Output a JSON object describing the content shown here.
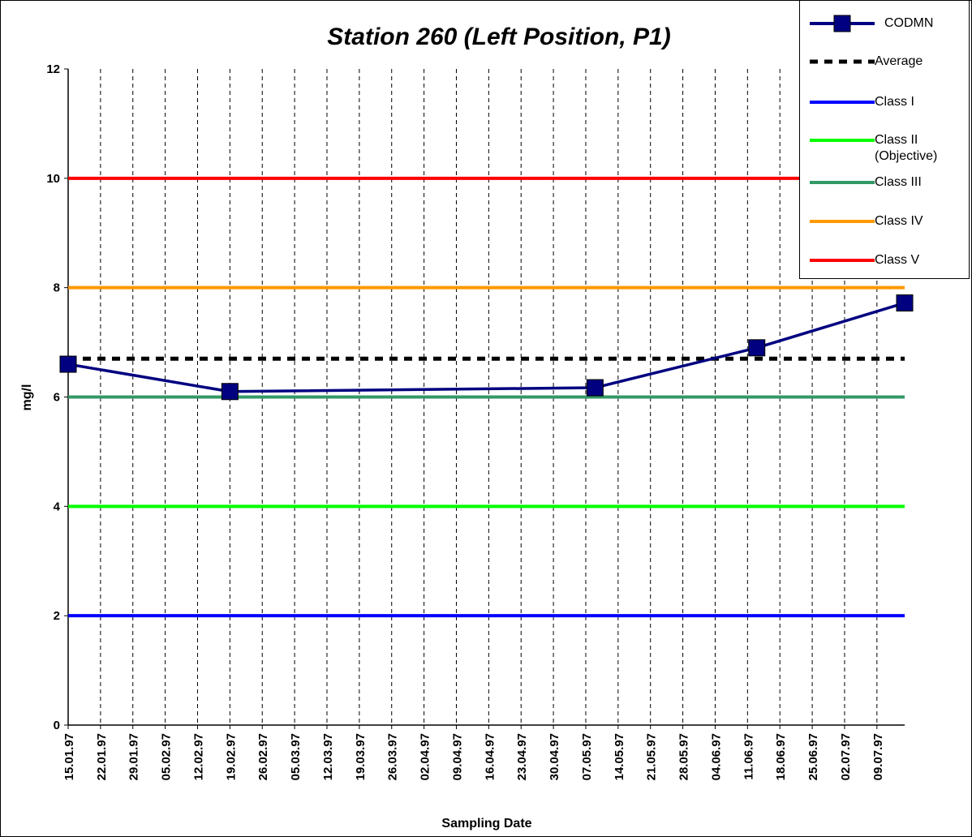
{
  "chart_data": {
    "type": "line",
    "title": "Station 260 (Left Position, P1)",
    "x_label": "Sampling Date",
    "y_label": "mg/l",
    "x": [
      "15.01.97",
      "19.02.97",
      "09.05.97",
      "13.06.97",
      "15.07.97"
    ],
    "series": [
      {
        "name": "CODMN",
        "color": "#000080",
        "values": [
          6.6,
          6.1,
          6.17,
          6.9,
          7.72
        ]
      }
    ],
    "reference_lines": [
      {
        "name": "Average",
        "color": "#000000",
        "value": 6.7,
        "dashed": true
      },
      {
        "name": "Class I",
        "color": "#0000ff",
        "value": 2
      },
      {
        "name": "Class II (Objective)",
        "color": "#00ff00",
        "value": 4
      },
      {
        "name": "Class III",
        "color": "#339966",
        "value": 6
      },
      {
        "name": "Class IV",
        "color": "#ff9900",
        "value": 8
      },
      {
        "name": "Class V",
        "color": "#ff0000",
        "value": 10
      }
    ],
    "xlim": [
      "15.01.97",
      "15.07.97"
    ],
    "xticks": [
      "15.01.97",
      "22.01.97",
      "29.01.97",
      "05.02.97",
      "12.02.97",
      "19.02.97",
      "26.02.97",
      "05.03.97",
      "12.03.97",
      "19.03.97",
      "26.03.97",
      "02.04.97",
      "09.04.97",
      "16.04.97",
      "23.04.97",
      "30.04.97",
      "07.05.97",
      "14.05.97",
      "21.05.97",
      "28.05.97",
      "04.06.97",
      "11.06.97",
      "18.06.97",
      "25.06.97",
      "02.07.97",
      "09.07.97"
    ],
    "ylim": [
      0,
      12
    ],
    "yticks": [
      0,
      2,
      4,
      6,
      8,
      10,
      12
    ],
    "grid": "x",
    "legend": "top-right"
  }
}
